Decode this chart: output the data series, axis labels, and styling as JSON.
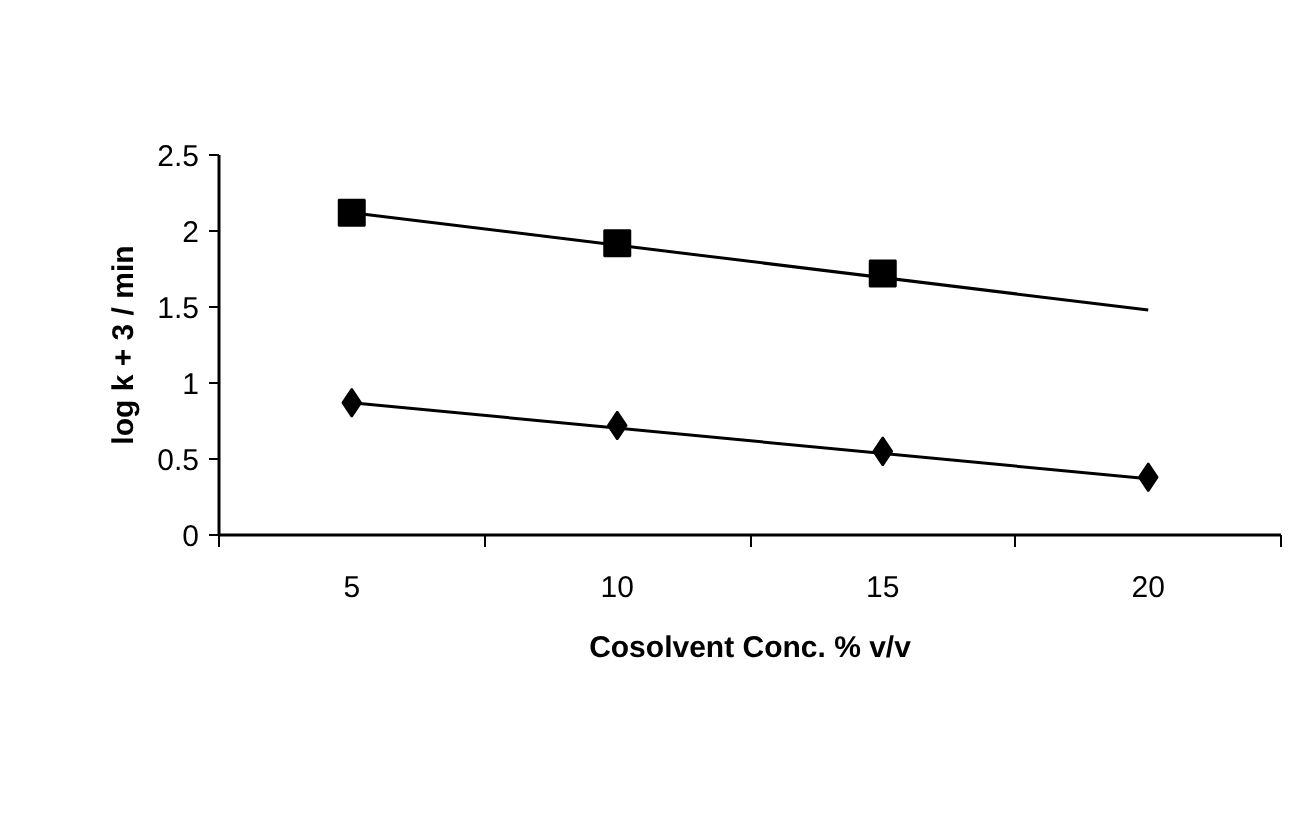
{
  "chart_data": {
    "type": "scatter",
    "xlabel": "Cosolvent Conc. % v/v",
    "ylabel": "log k + 3 / min",
    "categories": [
      "5",
      "10",
      "15",
      "20"
    ],
    "series": [
      {
        "marker": "square",
        "color": "#000000",
        "values": [
          2.12,
          1.92,
          1.72,
          null
        ]
      },
      {
        "type": "line",
        "marker": "none",
        "color": "#000000",
        "x": [
          "5",
          "20"
        ],
        "values": [
          2.12,
          1.48
        ]
      },
      {
        "marker": "diamond",
        "color": "#000000",
        "values": [
          0.87,
          0.72,
          0.55,
          0.38
        ]
      },
      {
        "type": "line",
        "marker": "none",
        "color": "#000000",
        "x": [
          "5",
          "20"
        ],
        "values": [
          0.87,
          0.37
        ]
      }
    ],
    "ylim": [
      0,
      2.5
    ],
    "yticks": [
      0,
      0.5,
      1,
      1.5,
      2,
      2.5
    ],
    "grid": false
  }
}
